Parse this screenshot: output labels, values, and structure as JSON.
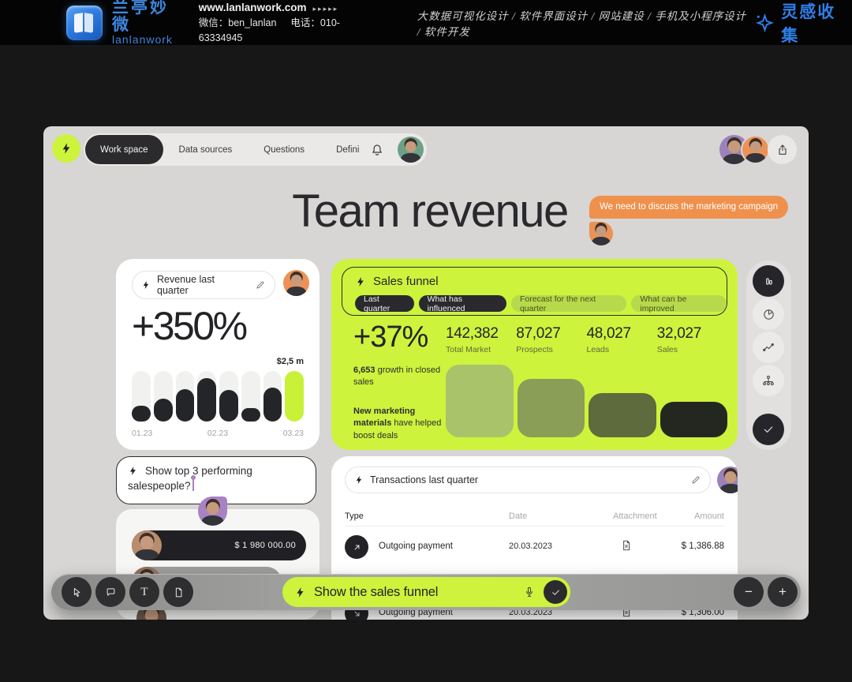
{
  "banner": {
    "brand_zh": "兰亭妙微",
    "brand_en": "lanlanwork",
    "website": "www.lanlanwork.com",
    "website_arrows": "▸▸▸▸▸",
    "wechat": "微信：ben_lanlan",
    "phone": "电话：010-63334945",
    "services": "大数据可视化设计 / 软件界面设计 / 网站建设 / 手机及小程序设计 / 软件开发",
    "collection": "灵感收集"
  },
  "nav": {
    "tabs": [
      {
        "label": "Work space",
        "active": true
      },
      {
        "label": "Data sources",
        "active": false
      },
      {
        "label": "Questions",
        "active": false
      },
      {
        "label": "Definitions",
        "active": false
      }
    ]
  },
  "header": {
    "title": "Team revenue",
    "comment": "We need to discuss the marketing campaign"
  },
  "revenue_card": {
    "query": "Revenue last quarter",
    "growth": "+350%",
    "peak_label": "$2,5 m",
    "x_labels": [
      "01.23",
      "02.23",
      "03.23"
    ],
    "chart_data": {
      "type": "bar",
      "title": "Revenue last quarter",
      "categories": [
        "01.23",
        "",
        "",
        "02.23",
        "",
        "",
        "",
        "03.23"
      ],
      "values_pct": [
        32,
        46,
        64,
        86,
        63,
        27,
        67,
        100
      ],
      "highlight_index": 7,
      "highlight_label": "$2,5 m",
      "track_color": "#f1f1ef",
      "fill_color": "#232529",
      "highlight_color": "#c9f138",
      "grid": false
    }
  },
  "funnel_card": {
    "title": "Sales funnel",
    "chips": [
      {
        "label": "Last quarter",
        "active": true
      },
      {
        "label": "What has influenced",
        "active": true
      },
      {
        "label": "Forecast for the next quarter",
        "active": false
      },
      {
        "label": "What can be improved",
        "active": false
      }
    ],
    "growth": "+37%",
    "growth_note": {
      "strong": "6,653",
      "rest": " growth in closed sales"
    },
    "insight": {
      "strong": "New marketing materials",
      "rest": " have helped boost deals"
    },
    "chart_data": {
      "type": "funnel",
      "title": "Sales funnel",
      "categories": [
        "Total Market",
        "Prospects",
        "Leads",
        "Sales"
      ],
      "values": [
        142382,
        87027,
        48027,
        32027
      ],
      "value_labels": [
        "142,382",
        "87,027",
        "48,027",
        "32,027"
      ],
      "heights_pct": [
        100,
        80,
        61,
        49
      ],
      "colors": [
        "#a9c36b",
        "#8a9e58",
        "#5d6b3d",
        "#24271f"
      ],
      "grid": false,
      "legend": false
    }
  },
  "side_toolbar": {
    "items": [
      "bar-chart",
      "pie-chart",
      "line-chart",
      "org-chart",
      "confirm"
    ]
  },
  "question_card": {
    "line1": "Show top 3 performing",
    "line2": "salespeople?"
  },
  "results_card": {
    "rows": [
      {
        "amount": "$ 1 980 000.00"
      },
      {
        "amount": ""
      }
    ]
  },
  "transactions_card": {
    "query": "Transactions last quarter",
    "columns": [
      "Type",
      "Date",
      "Attachment",
      "Amount"
    ],
    "rows": [
      {
        "type": "Outgoing payment",
        "date": "20.03.2023",
        "amount": "$ 1,386.88"
      },
      {
        "type": "Outgoing payment",
        "date": "20.03.2023",
        "amount": "$ 1,306.00"
      }
    ]
  },
  "toolbar": {
    "query": "Show the sales funnel",
    "text_tool": "T",
    "zoom_out": "−",
    "zoom_in": "+"
  },
  "colors": {
    "lime": "#cdf33c",
    "orange": "#ef914d",
    "purple": "#a982c4",
    "green_avatar": "#6ba287",
    "dark": "#26262a",
    "brand_blue": "#2f7fe8",
    "canvas": "#d7d6d4"
  }
}
